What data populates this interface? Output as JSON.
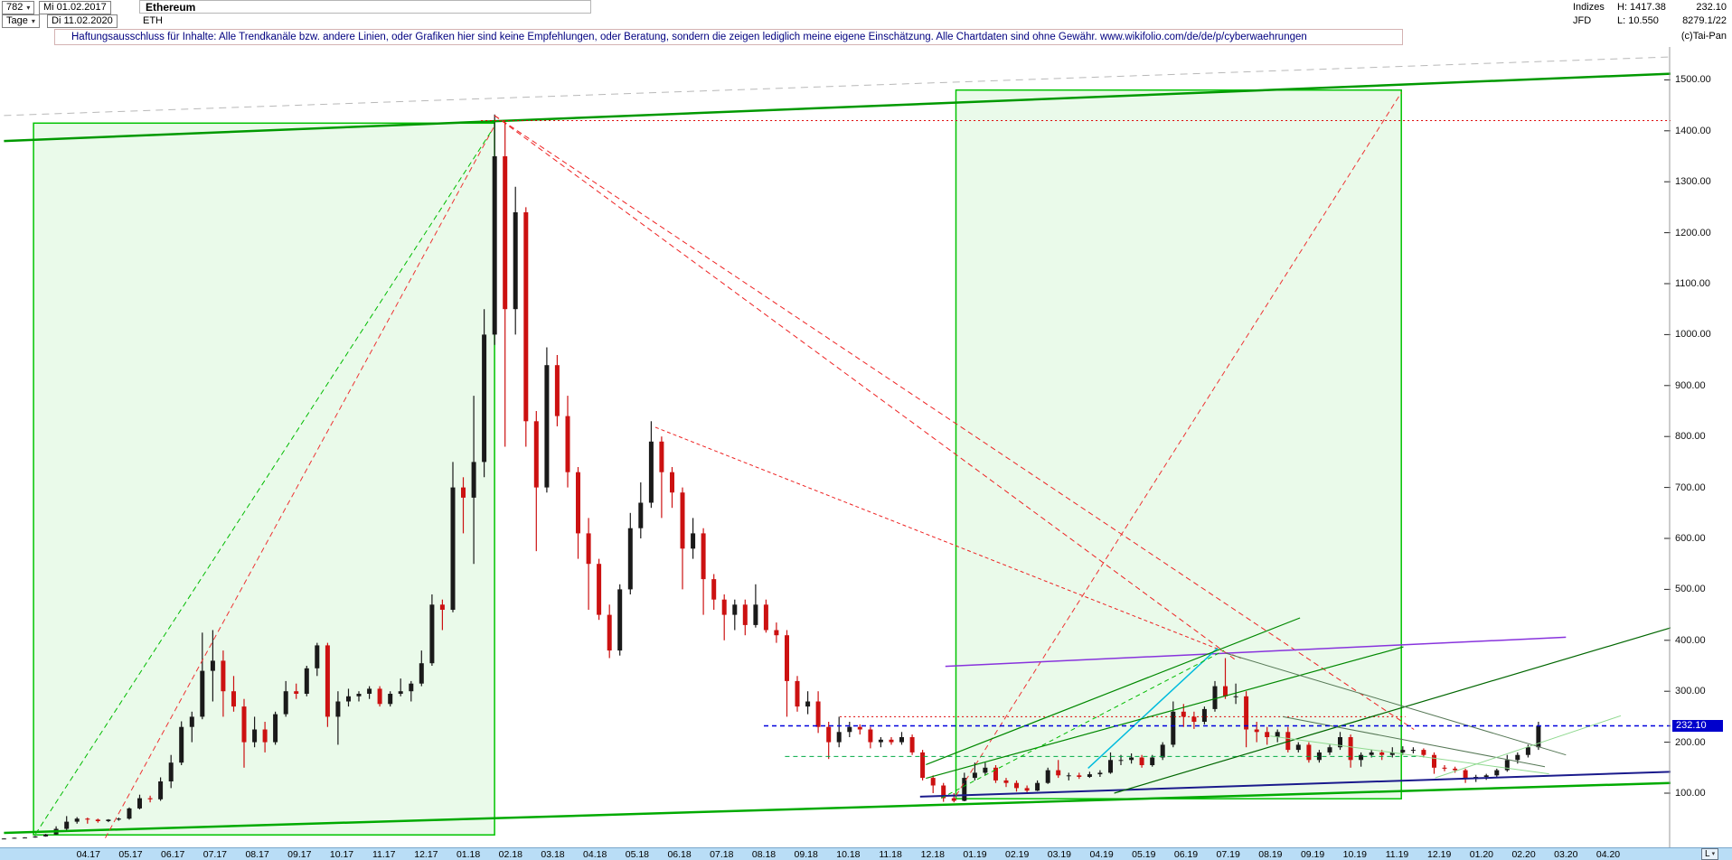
{
  "header": {
    "bars_count": "782",
    "start_date": "Mi 01.02.2017",
    "instrument_name": "Ethereum",
    "period": "Tage",
    "end_date": "Di 11.02.2020",
    "symbol": "ETH",
    "exchange_label": "Indizes",
    "high_label": "H: 1417.38",
    "last_price": "232.10",
    "feed": "JFD",
    "low_label": "L: 10.550",
    "counter": "8279.1/22",
    "copyright": "(c)Tai-Pan"
  },
  "disclaimer": "Haftungsausschluss für Inhalte: Alle Trendkanäle bzw. andere Linien, oder Grafiken hier sind keine Empfehlungen, oder Beratung, sondern die zeigen lediglich meine eigene Einschätzung. Alle Chartdaten sind ohne Gewähr.  www.wikifolio.com/de/de/p/cyberwaehrungen",
  "axes": {
    "y_labels": [
      "1500.00",
      "1400.00",
      "1300.00",
      "1200.00",
      "1100.00",
      "1000.00",
      "900.00",
      "800.00",
      "700.00",
      "600.00",
      "500.00",
      "400.00",
      "300.00",
      "200.00",
      "100.00"
    ],
    "x_labels": [
      "04.17",
      "05.17",
      "06.17",
      "07.17",
      "08.17",
      "09.17",
      "10.17",
      "11.17",
      "12.17",
      "01.18",
      "02.18",
      "03.18",
      "04.18",
      "05.18",
      "06.18",
      "07.18",
      "08.18",
      "09.18",
      "10.18",
      "11.18",
      "12.18",
      "01.19",
      "02.19",
      "03.19",
      "04.19",
      "05.19",
      "06.19",
      "07.19",
      "08.19",
      "09.19",
      "10.19",
      "11.19",
      "12.19",
      "01.20",
      "02.20",
      "03.20",
      "04.20"
    ],
    "price_tag": "232.10",
    "scale_button": "L"
  },
  "chart_data": {
    "type": "candlestick",
    "title": "Ethereum (ETH), Tage",
    "date_start": "01.02.2017",
    "date_end": "11.02.2020",
    "current_price": 232.1,
    "period_high": 1417.38,
    "period_low": 10.55,
    "y_ticks_min": 100,
    "y_ticks_max": 1500,
    "y_ticks_step": 100,
    "time_span_months": 36.35,
    "candles_weekly_ohlc": [
      [
        10.7,
        11.5,
        10.55,
        11
      ],
      [
        11,
        12.8,
        10.8,
        12.5
      ],
      [
        12.5,
        13.4,
        11.9,
        13
      ],
      [
        13,
        16,
        12.6,
        15
      ],
      [
        15,
        20,
        14.5,
        19
      ],
      [
        19,
        35,
        18.5,
        30
      ],
      [
        30,
        55,
        27,
        44
      ],
      [
        44,
        53,
        40,
        50
      ],
      [
        50,
        52,
        40,
        48
      ],
      [
        48,
        50,
        42,
        45
      ],
      [
        45,
        49,
        43,
        48
      ],
      [
        48,
        52,
        46,
        50
      ],
      [
        50,
        72,
        48,
        70
      ],
      [
        70,
        97,
        68,
        90
      ],
      [
        90,
        95,
        82,
        88
      ],
      [
        88,
        131,
        85,
        123
      ],
      [
        123,
        175,
        110,
        160
      ],
      [
        160,
        241,
        155,
        230
      ],
      [
        230,
        260,
        200,
        250
      ],
      [
        250,
        415,
        245,
        340
      ],
      [
        340,
        420,
        280,
        360
      ],
      [
        360,
        380,
        250,
        300
      ],
      [
        300,
        330,
        260,
        270
      ],
      [
        270,
        285,
        150,
        200
      ],
      [
        200,
        250,
        190,
        225
      ],
      [
        225,
        240,
        180,
        200
      ],
      [
        200,
        260,
        195,
        255
      ],
      [
        255,
        320,
        250,
        300
      ],
      [
        300,
        315,
        285,
        295
      ],
      [
        295,
        350,
        290,
        345
      ],
      [
        345,
        395,
        330,
        390
      ],
      [
        390,
        395,
        230,
        250
      ],
      [
        250,
        300,
        195,
        280
      ],
      [
        280,
        305,
        270,
        290
      ],
      [
        290,
        300,
        280,
        295
      ],
      [
        295,
        310,
        285,
        305
      ],
      [
        305,
        310,
        270,
        275
      ],
      [
        275,
        300,
        270,
        295
      ],
      [
        295,
        325,
        290,
        300
      ],
      [
        300,
        320,
        280,
        315
      ],
      [
        315,
        380,
        310,
        355
      ],
      [
        355,
        490,
        350,
        470
      ],
      [
        470,
        480,
        420,
        460
      ],
      [
        460,
        750,
        455,
        700
      ],
      [
        700,
        720,
        610,
        680
      ],
      [
        680,
        880,
        550,
        750
      ],
      [
        750,
        1050,
        720,
        1000
      ],
      [
        1000,
        1432,
        980,
        1350
      ],
      [
        1350,
        1420,
        780,
        1050
      ],
      [
        1050,
        1290,
        1000,
        1240
      ],
      [
        1240,
        1250,
        780,
        830
      ],
      [
        830,
        850,
        575,
        700
      ],
      [
        700,
        975,
        690,
        940
      ],
      [
        940,
        960,
        820,
        840
      ],
      [
        840,
        880,
        700,
        730
      ],
      [
        730,
        740,
        560,
        610
      ],
      [
        610,
        640,
        460,
        550
      ],
      [
        550,
        560,
        440,
        450
      ],
      [
        450,
        470,
        365,
        380
      ],
      [
        380,
        510,
        370,
        500
      ],
      [
        500,
        650,
        490,
        620
      ],
      [
        620,
        710,
        600,
        670
      ],
      [
        670,
        830,
        660,
        790
      ],
      [
        790,
        800,
        640,
        730
      ],
      [
        730,
        740,
        660,
        690
      ],
      [
        690,
        700,
        500,
        580
      ],
      [
        580,
        640,
        560,
        610
      ],
      [
        610,
        620,
        450,
        520
      ],
      [
        520,
        530,
        460,
        480
      ],
      [
        480,
        490,
        400,
        450
      ],
      [
        450,
        480,
        420,
        470
      ],
      [
        470,
        480,
        410,
        430
      ],
      [
        430,
        510,
        425,
        470
      ],
      [
        470,
        480,
        415,
        420
      ],
      [
        420,
        435,
        395,
        410
      ],
      [
        410,
        420,
        250,
        320
      ],
      [
        320,
        330,
        260,
        270
      ],
      [
        270,
        300,
        255,
        280
      ],
      [
        280,
        300,
        218,
        230
      ],
      [
        230,
        240,
        167,
        200
      ],
      [
        200,
        250,
        190,
        220
      ],
      [
        220,
        240,
        210,
        230
      ],
      [
        230,
        235,
        215,
        225
      ],
      [
        225,
        230,
        188,
        200
      ],
      [
        200,
        210,
        190,
        205
      ],
      [
        205,
        210,
        195,
        200
      ],
      [
        200,
        220,
        195,
        210
      ],
      [
        210,
        215,
        175,
        180
      ],
      [
        180,
        185,
        125,
        130
      ],
      [
        130,
        135,
        100,
        115
      ],
      [
        115,
        120,
        83,
        90
      ],
      [
        90,
        100,
        82,
        85
      ],
      [
        85,
        140,
        84,
        130
      ],
      [
        130,
        160,
        125,
        140
      ],
      [
        140,
        160,
        135,
        150
      ],
      [
        150,
        155,
        120,
        125
      ],
      [
        125,
        130,
        112,
        120
      ],
      [
        120,
        125,
        103,
        110
      ],
      [
        110,
        115,
        102,
        105
      ],
      [
        105,
        125,
        104,
        120
      ],
      [
        120,
        150,
        118,
        145
      ],
      [
        145,
        165,
        130,
        135
      ],
      [
        135,
        140,
        125,
        135
      ],
      [
        135,
        140,
        128,
        132
      ],
      [
        132,
        142,
        130,
        137
      ],
      [
        137,
        145,
        132,
        140
      ],
      [
        140,
        180,
        138,
        165
      ],
      [
        165,
        175,
        155,
        165
      ],
      [
        165,
        178,
        158,
        170
      ],
      [
        170,
        175,
        150,
        155
      ],
      [
        155,
        175,
        152,
        170
      ],
      [
        170,
        200,
        165,
        195
      ],
      [
        195,
        280,
        190,
        260
      ],
      [
        260,
        275,
        230,
        250
      ],
      [
        250,
        260,
        226,
        240
      ],
      [
        240,
        270,
        235,
        265
      ],
      [
        265,
        320,
        260,
        310
      ],
      [
        310,
        365,
        285,
        290
      ],
      [
        290,
        315,
        275,
        290
      ],
      [
        290,
        300,
        190,
        225
      ],
      [
        225,
        240,
        200,
        220
      ],
      [
        220,
        230,
        195,
        210
      ],
      [
        210,
        225,
        200,
        220
      ],
      [
        220,
        230,
        180,
        185
      ],
      [
        185,
        200,
        180,
        195
      ],
      [
        195,
        200,
        160,
        165
      ],
      [
        165,
        185,
        160,
        180
      ],
      [
        180,
        195,
        175,
        190
      ],
      [
        190,
        220,
        185,
        210
      ],
      [
        210,
        215,
        150,
        165
      ],
      [
        165,
        180,
        152,
        175
      ],
      [
        175,
        185,
        170,
        180
      ],
      [
        180,
        185,
        165,
        175
      ],
      [
        175,
        190,
        170,
        180
      ],
      [
        180,
        192,
        175,
        185
      ],
      [
        185,
        190,
        178,
        185
      ],
      [
        185,
        188,
        170,
        175
      ],
      [
        175,
        180,
        138,
        150
      ],
      [
        150,
        155,
        143,
        148
      ],
      [
        148,
        152,
        140,
        145
      ],
      [
        145,
        148,
        120,
        128
      ],
      [
        128,
        136,
        122,
        132
      ],
      [
        132,
        138,
        126,
        135
      ],
      [
        135,
        148,
        132,
        145
      ],
      [
        145,
        175,
        142,
        165
      ],
      [
        165,
        180,
        158,
        175
      ],
      [
        175,
        195,
        170,
        190
      ],
      [
        190,
        240,
        185,
        232.1
      ]
    ],
    "boxes": [
      {
        "name": "trend-channel-2017",
        "from": [
          0.7,
          18
        ],
        "to": [
          11.62,
          1415
        ]
      },
      {
        "name": "trend-channel-2019",
        "from": [
          22.55,
          89
        ],
        "to": [
          33.1,
          1480
        ]
      }
    ],
    "overlays": [
      {
        "name": "upper-resistance-line",
        "color": "#009900",
        "width": 2.5,
        "dash": "",
        "from": [
          0,
          1380
        ],
        "to": [
          39.5,
          1512
        ]
      },
      {
        "name": "upper-gray-dashed-line",
        "color": "#b8b8b8",
        "width": 1,
        "dash": "8,6",
        "from": [
          0,
          1430
        ],
        "to": [
          39.5,
          1545
        ]
      },
      {
        "name": "lower-support-line",
        "color": "#00aa00",
        "width": 2.5,
        "dash": "",
        "from": [
          0,
          22
        ],
        "to": [
          39.5,
          120
        ]
      },
      {
        "name": "navy-support-line",
        "color": "#1a1a8c",
        "width": 2,
        "dash": "",
        "from": [
          21.7,
          93
        ],
        "to": [
          39.5,
          142
        ]
      },
      {
        "name": "peak-resistance-dotted",
        "color": "#dd0000",
        "width": 1,
        "dash": "2,3",
        "from": [
          11.3,
          1420
        ],
        "to": [
          39.5,
          1420
        ]
      },
      {
        "name": "jan18-downtrend-a",
        "color": "#ee2222",
        "width": 1,
        "dash": "6,4",
        "from": [
          11.62,
          1430
        ],
        "to": [
          29.2,
          360
        ]
      },
      {
        "name": "jan18-downtrend-b",
        "color": "#ee2222",
        "width": 1,
        "dash": "6,4",
        "from": [
          11.62,
          1430
        ],
        "to": [
          33.4,
          225
        ]
      },
      {
        "name": "may18-downtrend",
        "color": "#ee2222",
        "width": 1,
        "dash": "4,3",
        "from": [
          15.43,
          818
        ],
        "to": [
          29.3,
          365
        ]
      },
      {
        "name": "channel2-diagonal",
        "color": "#ee3333",
        "width": 1,
        "dash": "6,4",
        "from": [
          22.55,
          95
        ],
        "to": [
          33.1,
          1475
        ]
      },
      {
        "name": "channel1-diagonal-red",
        "color": "#ee3333",
        "width": 1,
        "dash": "6,4",
        "from": [
          2.4,
          12
        ],
        "to": [
          11.62,
          1410
        ]
      },
      {
        "name": "channel1-diagonal-green",
        "color": "#00bb00",
        "width": 1,
        "dash": "6,4",
        "from": [
          0.75,
          20
        ],
        "to": [
          11.55,
          1400
        ]
      },
      {
        "name": "violet-resistance-line",
        "color": "#8833dd",
        "width": 1.5,
        "dash": "",
        "from": [
          22.3,
          349
        ],
        "to": [
          37,
          406
        ]
      },
      {
        "name": "resistance-250-dotted",
        "color": "#dd0000",
        "width": 1,
        "dash": "2,3",
        "from": [
          19.8,
          250
        ],
        "to": [
          33.2,
          250
        ]
      },
      {
        "name": "support-172-dashed",
        "color": "#00aa44",
        "width": 1,
        "dash": "5,4",
        "from": [
          18.5,
          172
        ],
        "to": [
          33.7,
          172
        ]
      },
      {
        "name": "cyan-trend-line",
        "color": "#00bbdd",
        "width": 1.5,
        "dash": "",
        "from": [
          25.68,
          149
        ],
        "to": [
          28.75,
          385
        ]
      },
      {
        "name": "green-fan-line-1",
        "color": "#008800",
        "width": 1.2,
        "dash": "",
        "from": [
          21.84,
          156
        ],
        "to": [
          30.7,
          444
        ]
      },
      {
        "name": "green-fan-line-2",
        "color": "#008800",
        "width": 1.2,
        "dash": "",
        "from": [
          21.84,
          129
        ],
        "to": [
          33.15,
          387
        ]
      },
      {
        "name": "green-fan-line-3",
        "color": "#006600",
        "width": 1.2,
        "dash": "",
        "from": [
          26.3,
          100
        ],
        "to": [
          39.5,
          425
        ]
      },
      {
        "name": "green-dashed-uptrend",
        "color": "#00bb00",
        "width": 1,
        "dash": "5,4",
        "from": [
          22.2,
          90
        ],
        "to": [
          28.9,
          380
        ]
      },
      {
        "name": "wedge-upper-line",
        "color": "#557755",
        "width": 1,
        "dash": "",
        "from": [
          28.93,
          375
        ],
        "to": [
          37,
          175
        ]
      },
      {
        "name": "wedge-lower-line",
        "color": "#557755",
        "width": 1,
        "dash": "",
        "from": [
          30.3,
          250
        ],
        "to": [
          36.5,
          152
        ]
      },
      {
        "name": "light-green-channel-line",
        "color": "#8fd98f",
        "width": 1,
        "dash": "",
        "from": [
          30,
          212
        ],
        "to": [
          36.6,
          138
        ]
      },
      {
        "name": "light-green-breakout-line",
        "color": "#8fd98f",
        "width": 1,
        "dash": "",
        "from": [
          33.9,
          130
        ],
        "to": [
          38.3,
          252
        ]
      },
      {
        "name": "current-price-line",
        "color": "#0000dd",
        "width": 1.5,
        "dash": "5,4",
        "from": [
          18,
          232.1
        ],
        "to": [
          39.5,
          232.1
        ]
      }
    ],
    "colors": {
      "candle_up": "#1a1a1a",
      "candle_down": "#cc1111",
      "channel_fill": "rgba(150,230,150,0.20)",
      "channel_stroke": "#00c300",
      "axis_strip_bg": "#b9ddf6",
      "price_tag_bg": "#0000cc",
      "disclaimer_text": "#000080"
    }
  }
}
